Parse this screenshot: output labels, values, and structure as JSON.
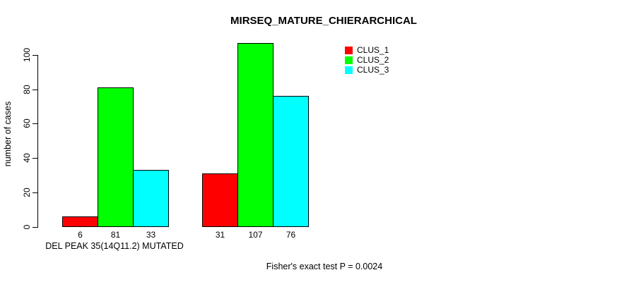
{
  "chart_data": {
    "type": "bar",
    "title": "MIRSEQ_MATURE_CHIERARCHICAL",
    "ylabel": "number of cases",
    "xlabel": "DEL PEAK 35(14Q11.2) MUTATED",
    "annotation": "Fisher's exact test P = 0.0024",
    "yticks": [
      0,
      20,
      40,
      60,
      80,
      100
    ],
    "ylim": [
      0,
      110
    ],
    "grid": false,
    "legend_position": "top-right",
    "background_color": "#ffffff",
    "axis_color": "#000000",
    "bar_border_color": "#000000",
    "groups": 2,
    "series": [
      {
        "name": "CLUS_1",
        "color": "#ff0000",
        "values": [
          6,
          31
        ]
      },
      {
        "name": "CLUS_2",
        "color": "#00ff00",
        "values": [
          81,
          107
        ]
      },
      {
        "name": "CLUS_3",
        "color": "#00ffff",
        "values": [
          33,
          76
        ]
      }
    ],
    "bar_value_labels": [
      [
        "6",
        "81",
        "33"
      ],
      [
        "31",
        "107",
        "76"
      ]
    ]
  }
}
